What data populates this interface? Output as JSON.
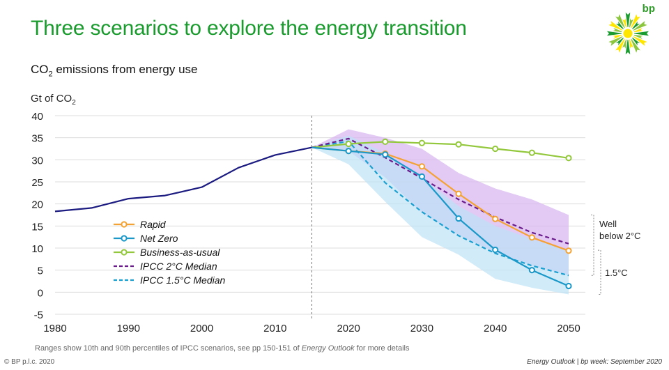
{
  "header": {
    "title": "Three scenarios to explore the energy transition",
    "subtitle_prefix": "CO",
    "subtitle_sub": "2",
    "subtitle_suffix": " emissions from energy use",
    "logo_text": "bp"
  },
  "footer": {
    "note_prefix": "Ranges show 10th and 90th percentiles of IPCC scenarios, see pp 150-151 of ",
    "note_italic": "Energy Outlook",
    "note_suffix": " for more details",
    "copyright": "© BP p.l.c. 2020",
    "source_italic1": "Energy Outlook",
    "source_sep": " | ",
    "source_italic2": "bp week: September 2020"
  },
  "colors": {
    "title": "#1a9b2e",
    "historical": "#1a1a80",
    "rapid": "#f4a233",
    "net_zero": "#1a98c8",
    "bau": "#93c83d",
    "ipcc2": "#6a1a8a",
    "ipcc15": "#1aa0d0",
    "band2": "#d8b8f0",
    "band15": "#bde3f7"
  },
  "chart_data": {
    "type": "line",
    "title": "CO2 emissions from energy use",
    "ylabel_prefix": "Gt of CO",
    "ylabel_sub": "2",
    "xlim": [
      1980,
      2050
    ],
    "ylim": [
      -5,
      40
    ],
    "x_ticks": [
      1980,
      1990,
      2000,
      2010,
      2020,
      2030,
      2040,
      2050
    ],
    "y_ticks": [
      -5,
      0,
      5,
      10,
      15,
      20,
      25,
      30,
      35,
      40
    ],
    "divider_year": 2015,
    "series": [
      {
        "name": "Historical",
        "key": "historical",
        "style": "solid",
        "markers": false,
        "x": [
          1980,
          1985,
          1990,
          1995,
          2000,
          2005,
          2010,
          2015
        ],
        "values": [
          18.3,
          19.1,
          21.2,
          21.9,
          23.8,
          28.2,
          31.1,
          32.8
        ]
      },
      {
        "name": "Rapid",
        "key": "rapid",
        "style": "solid",
        "markers": true,
        "x": [
          2015,
          2020,
          2025,
          2030,
          2035,
          2040,
          2045,
          2050
        ],
        "values": [
          32.8,
          32.0,
          31.4,
          28.5,
          22.3,
          16.6,
          12.4,
          9.4
        ]
      },
      {
        "name": "Net Zero",
        "key": "net_zero",
        "style": "solid",
        "markers": true,
        "x": [
          2015,
          2020,
          2025,
          2030,
          2035,
          2040,
          2045,
          2050
        ],
        "values": [
          32.8,
          32.0,
          31.2,
          26.2,
          16.7,
          9.6,
          5.0,
          1.4
        ]
      },
      {
        "name": "Business-as-usual",
        "key": "bau",
        "style": "solid",
        "markers": true,
        "x": [
          2015,
          2020,
          2025,
          2030,
          2035,
          2040,
          2045,
          2050
        ],
        "values": [
          32.8,
          33.6,
          34.1,
          33.8,
          33.5,
          32.5,
          31.6,
          30.4
        ]
      },
      {
        "name": "IPCC 2°C Median",
        "key": "ipcc2",
        "style": "dashed",
        "markers": false,
        "x": [
          2015,
          2020,
          2025,
          2030,
          2035,
          2040,
          2045,
          2050
        ],
        "values": [
          32.8,
          34.8,
          30.5,
          25.8,
          21.0,
          17.0,
          13.5,
          11.0
        ]
      },
      {
        "name": "IPCC 1.5°C Median",
        "key": "ipcc15",
        "style": "dashed",
        "markers": false,
        "x": [
          2015,
          2020,
          2025,
          2030,
          2035,
          2040,
          2045,
          2050
        ],
        "values": [
          32.8,
          34.2,
          24.8,
          18.2,
          12.8,
          8.8,
          6.0,
          3.8
        ]
      }
    ],
    "bands": [
      {
        "name": "IPCC 2°C range",
        "key": "band2",
        "x": [
          2015,
          2020,
          2025,
          2030,
          2035,
          2040,
          2045,
          2050
        ],
        "upper": [
          32.8,
          36.9,
          35.0,
          32.5,
          27.0,
          23.5,
          21.0,
          17.5
        ],
        "lower": [
          32.8,
          32.0,
          26.0,
          18.0,
          12.8,
          9.0,
          6.0,
          3.8
        ]
      },
      {
        "name": "IPCC 1.5°C range",
        "key": "band15",
        "x": [
          2015,
          2020,
          2025,
          2030,
          2035,
          2040,
          2045,
          2050
        ],
        "upper": [
          32.8,
          35.5,
          31.5,
          26.0,
          19.5,
          15.0,
          12.0,
          9.5
        ],
        "lower": [
          32.8,
          29.0,
          20.5,
          12.5,
          8.5,
          3.0,
          1.0,
          -0.5
        ]
      }
    ],
    "legend": [
      {
        "label": "Rapid",
        "key": "rapid",
        "style": "solid",
        "markers": true
      },
      {
        "label": "Net Zero",
        "key": "net_zero",
        "style": "solid",
        "markers": true
      },
      {
        "label": "Business-as-usual",
        "key": "bau",
        "style": "solid",
        "markers": true
      },
      {
        "label": "IPCC 2°C Median",
        "key": "ipcc2",
        "style": "dashed",
        "markers": false
      },
      {
        "label": "IPCC 1.5°C Median",
        "key": "ipcc15",
        "style": "dashed",
        "markers": false
      }
    ],
    "annotations": {
      "well_below_line1": "Well",
      "well_below_line2": "below 2°C",
      "one_five": "1.5°C",
      "bracket_upper": [
        17.5,
        3.8
      ],
      "bracket_lower": [
        9.5,
        -0.5
      ]
    }
  }
}
